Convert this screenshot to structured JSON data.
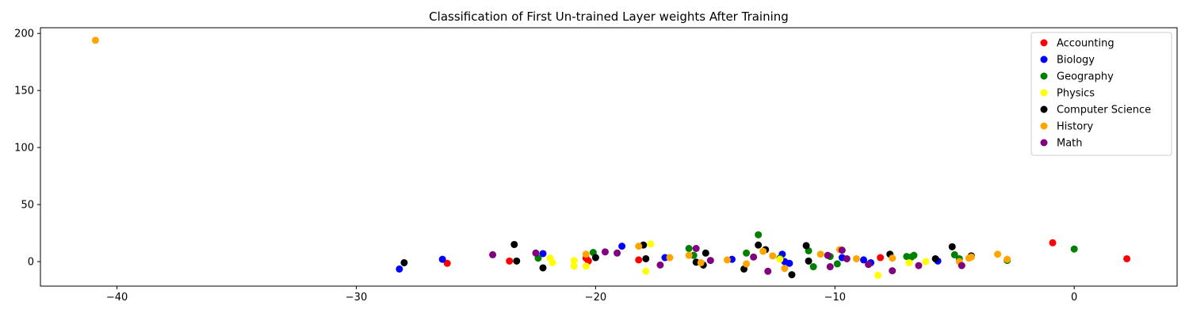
{
  "chart_data": {
    "type": "scatter",
    "title": "Classification of First Un-trained Layer weights After Training",
    "xlabel": "",
    "ylabel": "",
    "xlim": [
      -43.2,
      4.3
    ],
    "ylim": [
      -21.5,
      205
    ],
    "x_ticks": [
      -40,
      -30,
      -20,
      -10,
      0
    ],
    "y_ticks": [
      0,
      50,
      100,
      150,
      200
    ],
    "grid": false,
    "legend_position": "upper right",
    "series": [
      {
        "name": "Accounting",
        "color": "#ff0000",
        "points": [
          [
            -26.2,
            -1.5
          ],
          [
            -23.6,
            0.5
          ],
          [
            -20.4,
            3
          ],
          [
            -20.3,
            0.5
          ],
          [
            -18.2,
            1.5
          ],
          [
            -8.1,
            3.5
          ],
          [
            -0.9,
            16.5
          ],
          [
            2.2,
            2.5
          ]
        ]
      },
      {
        "name": "Biology",
        "color": "#0000ff",
        "points": [
          [
            -28.2,
            -6.5
          ],
          [
            -26.4,
            2
          ],
          [
            -22.2,
            7
          ],
          [
            -18.9,
            13.5
          ],
          [
            -17.1,
            3.5
          ],
          [
            -14.3,
            2
          ],
          [
            -12.2,
            6.5
          ],
          [
            -12.1,
            0
          ],
          [
            -11.9,
            -1.5
          ],
          [
            -9.7,
            3.5
          ],
          [
            -8.8,
            1.5
          ],
          [
            -8.5,
            -1
          ],
          [
            -5.7,
            0.5
          ]
        ]
      },
      {
        "name": "Geography",
        "color": "#008000",
        "points": [
          [
            -22.4,
            3
          ],
          [
            -20.1,
            8
          ],
          [
            -16.1,
            11.5
          ],
          [
            -15.9,
            5.5
          ],
          [
            -13.7,
            7.5
          ],
          [
            -13.2,
            23.5
          ],
          [
            -12.3,
            3
          ],
          [
            -11.1,
            9.5
          ],
          [
            -10.9,
            -4.5
          ],
          [
            -10.2,
            4.5
          ],
          [
            -9.9,
            -2
          ],
          [
            -7.0,
            4.5
          ],
          [
            -6.8,
            4
          ],
          [
            -6.7,
            5.5
          ],
          [
            -5.0,
            6
          ],
          [
            -4.8,
            2.5
          ],
          [
            -2.8,
            1
          ],
          [
            0.0,
            11
          ]
        ]
      },
      {
        "name": "Physics",
        "color": "#ffff00",
        "points": [
          [
            -21.9,
            3
          ],
          [
            -21.8,
            -1
          ],
          [
            -20.9,
            1
          ],
          [
            -20.9,
            -4
          ],
          [
            -20.4,
            -4
          ],
          [
            -17.9,
            -8.5
          ],
          [
            -17.7,
            15.5
          ],
          [
            -12.3,
            2
          ],
          [
            -8.2,
            -12
          ],
          [
            -6.9,
            -1
          ],
          [
            -6.2,
            0
          ]
        ]
      },
      {
        "name": "Computer Science",
        "color": "#000000",
        "points": [
          [
            -28.0,
            -1
          ],
          [
            -23.4,
            15
          ],
          [
            -23.3,
            0.5
          ],
          [
            -22.2,
            -5.5
          ],
          [
            -20.0,
            3.5
          ],
          [
            -18.0,
            14.5
          ],
          [
            -17.9,
            2.5
          ],
          [
            -15.8,
            -0.5
          ],
          [
            -15.5,
            -3
          ],
          [
            -15.4,
            7.5
          ],
          [
            -13.8,
            -6.5
          ],
          [
            -13.2,
            14.5
          ],
          [
            -12.9,
            10.5
          ],
          [
            -11.8,
            -11.5
          ],
          [
            -11.2,
            14
          ],
          [
            -11.1,
            0.5
          ],
          [
            -7.7,
            6.5
          ],
          [
            -5.8,
            2.5
          ],
          [
            -5.1,
            13
          ],
          [
            -4.3,
            5
          ]
        ]
      },
      {
        "name": "History",
        "color": "#ffa500",
        "points": [
          [
            -40.9,
            194
          ],
          [
            -20.4,
            6.5
          ],
          [
            -18.2,
            13.5
          ],
          [
            -16.9,
            3.5
          ],
          [
            -16.1,
            5.5
          ],
          [
            -15.6,
            -1
          ],
          [
            -14.5,
            1.5
          ],
          [
            -13.7,
            -2
          ],
          [
            -13.0,
            9
          ],
          [
            -12.6,
            5
          ],
          [
            -12.1,
            -6
          ],
          [
            -10.6,
            6.5
          ],
          [
            -9.8,
            10.5
          ],
          [
            -9.1,
            2.5
          ],
          [
            -7.6,
            3
          ],
          [
            -4.8,
            0
          ],
          [
            -4.4,
            3
          ],
          [
            -4.3,
            4
          ],
          [
            -3.2,
            6.5
          ],
          [
            -2.8,
            2
          ]
        ]
      },
      {
        "name": "Math",
        "color": "#800080",
        "points": [
          [
            -24.3,
            6
          ],
          [
            -22.5,
            7.5
          ],
          [
            -19.6,
            8.5
          ],
          [
            -19.1,
            7.5
          ],
          [
            -17.3,
            -3
          ],
          [
            -15.8,
            11.5
          ],
          [
            -15.2,
            1
          ],
          [
            -13.4,
            4
          ],
          [
            -12.8,
            -8.5
          ],
          [
            -10.3,
            5.5
          ],
          [
            -10.2,
            -4.5
          ],
          [
            -9.7,
            10
          ],
          [
            -9.5,
            2.5
          ],
          [
            -8.6,
            -2.5
          ],
          [
            -7.6,
            -8
          ],
          [
            -6.5,
            -3.5
          ],
          [
            -4.7,
            -3.5
          ]
        ]
      }
    ]
  }
}
